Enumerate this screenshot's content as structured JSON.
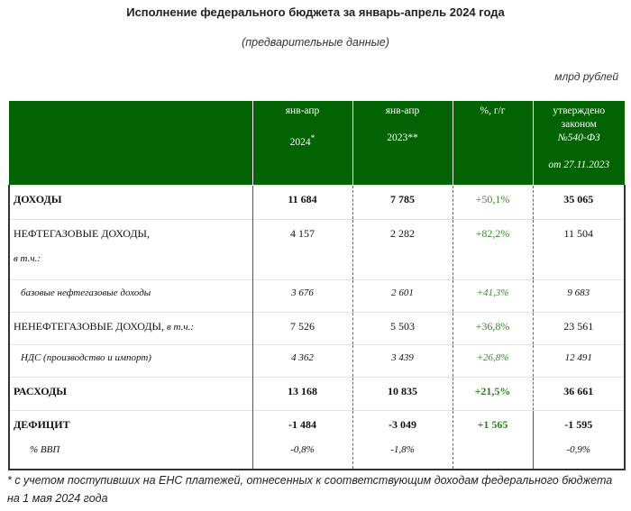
{
  "title": "Исполнение федерального бюджета за январь-апрель 2024 года",
  "subtitle": "(предварительные данные)",
  "units": "млрд рублей",
  "header": {
    "col2_l1": "янв-апр",
    "col2_l2": "2024",
    "col2_sup": "*",
    "col3_l1": "янв-апр",
    "col3_l2": "2023**",
    "col4": "%, г/г",
    "col5_l1": "утверждено",
    "col5_l2": "законом",
    "col5_l3": "№540-ФЗ",
    "col5_l4": "от 27.11.2023"
  },
  "rows": {
    "income": {
      "label": "ДОХОДЫ",
      "v2024": "11 684",
      "v2023": "7 785",
      "yoy": "+50,1%",
      "law": "35 065"
    },
    "oilgas": {
      "label": "НЕФТЕГАЗОВЫЕ ДОХОДЫ,",
      "note": "в т.ч.:",
      "v2024": "4 157",
      "v2023": "2 282",
      "yoy": "+82,2%",
      "law": "11 504"
    },
    "base_oilgas": {
      "label": "базовые нефтегазовые доходы",
      "v2024": "3 676",
      "v2023": "2 601",
      "yoy": "+41,3%",
      "law": "9 683"
    },
    "nonoil": {
      "label": "НЕНЕФТЕГАЗОВЫЕ ДОХОДЫ,",
      "note": "в т.ч.:",
      "v2024": "7 526",
      "v2023": "5 503",
      "yoy": "+36,8%",
      "law": "23 561"
    },
    "vat": {
      "label": "НДС (производство и импорт)",
      "v2024": "4 362",
      "v2023": "3 439",
      "yoy": "+26,8%",
      "law": "12 491"
    },
    "expenses": {
      "label": "РАСХОДЫ",
      "v2024": "13 168",
      "v2023": "10 835",
      "yoy": "+21,5%",
      "law": "36 661"
    },
    "deficit": {
      "label": "ДЕФИЦИТ",
      "v2024": "-1 484",
      "v2023": "-3 049",
      "yoy": "+1 565",
      "law": "-1 595",
      "gdp_label": "% ВВП",
      "gdp2024": "-0,8%",
      "gdp2023": "-1,8%",
      "gdp_law": "-0,9%"
    }
  },
  "footnote": "* с учетом поступивших на ЕНС платежей, отнесенных к соответствующим доходам федерального бюджета на 1 мая 2024 года"
}
